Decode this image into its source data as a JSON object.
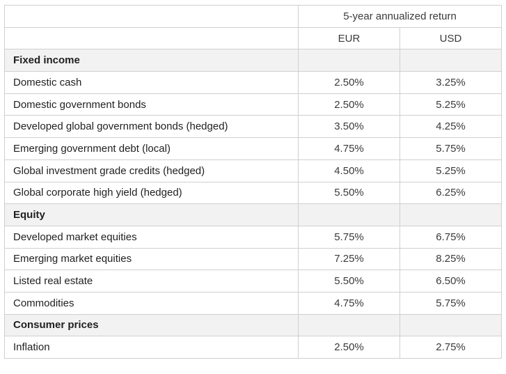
{
  "header": {
    "group_label": "5-year annualized return",
    "currencies": [
      "EUR",
      "USD"
    ]
  },
  "sections": [
    {
      "title": "Fixed income",
      "rows": [
        {
          "label": "Domestic cash",
          "eur": "2.50%",
          "usd": "3.25%"
        },
        {
          "label": "Domestic government bonds",
          "eur": "2.50%",
          "usd": "5.25%"
        },
        {
          "label": "Developed global government bonds (hedged)",
          "eur": "3.50%",
          "usd": "4.25%"
        },
        {
          "label": "Emerging government debt (local)",
          "eur": "4.75%",
          "usd": "5.75%"
        },
        {
          "label": "Global investment grade credits (hedged)",
          "eur": "4.50%",
          "usd": "5.25%"
        },
        {
          "label": "Global corporate high yield (hedged)",
          "eur": "5.50%",
          "usd": "6.25%"
        }
      ]
    },
    {
      "title": "Equity",
      "rows": [
        {
          "label": "Developed market equities",
          "eur": "5.75%",
          "usd": "6.75%"
        },
        {
          "label": "Emerging market equities",
          "eur": "7.25%",
          "usd": "8.25%"
        },
        {
          "label": "Listed real estate",
          "eur": "5.50%",
          "usd": "6.50%"
        },
        {
          "label": "Commodities",
          "eur": "4.75%",
          "usd": "5.75%"
        }
      ]
    },
    {
      "title": "Consumer prices",
      "rows": [
        {
          "label": "Inflation",
          "eur": "2.50%",
          "usd": "2.75%"
        }
      ]
    }
  ]
}
